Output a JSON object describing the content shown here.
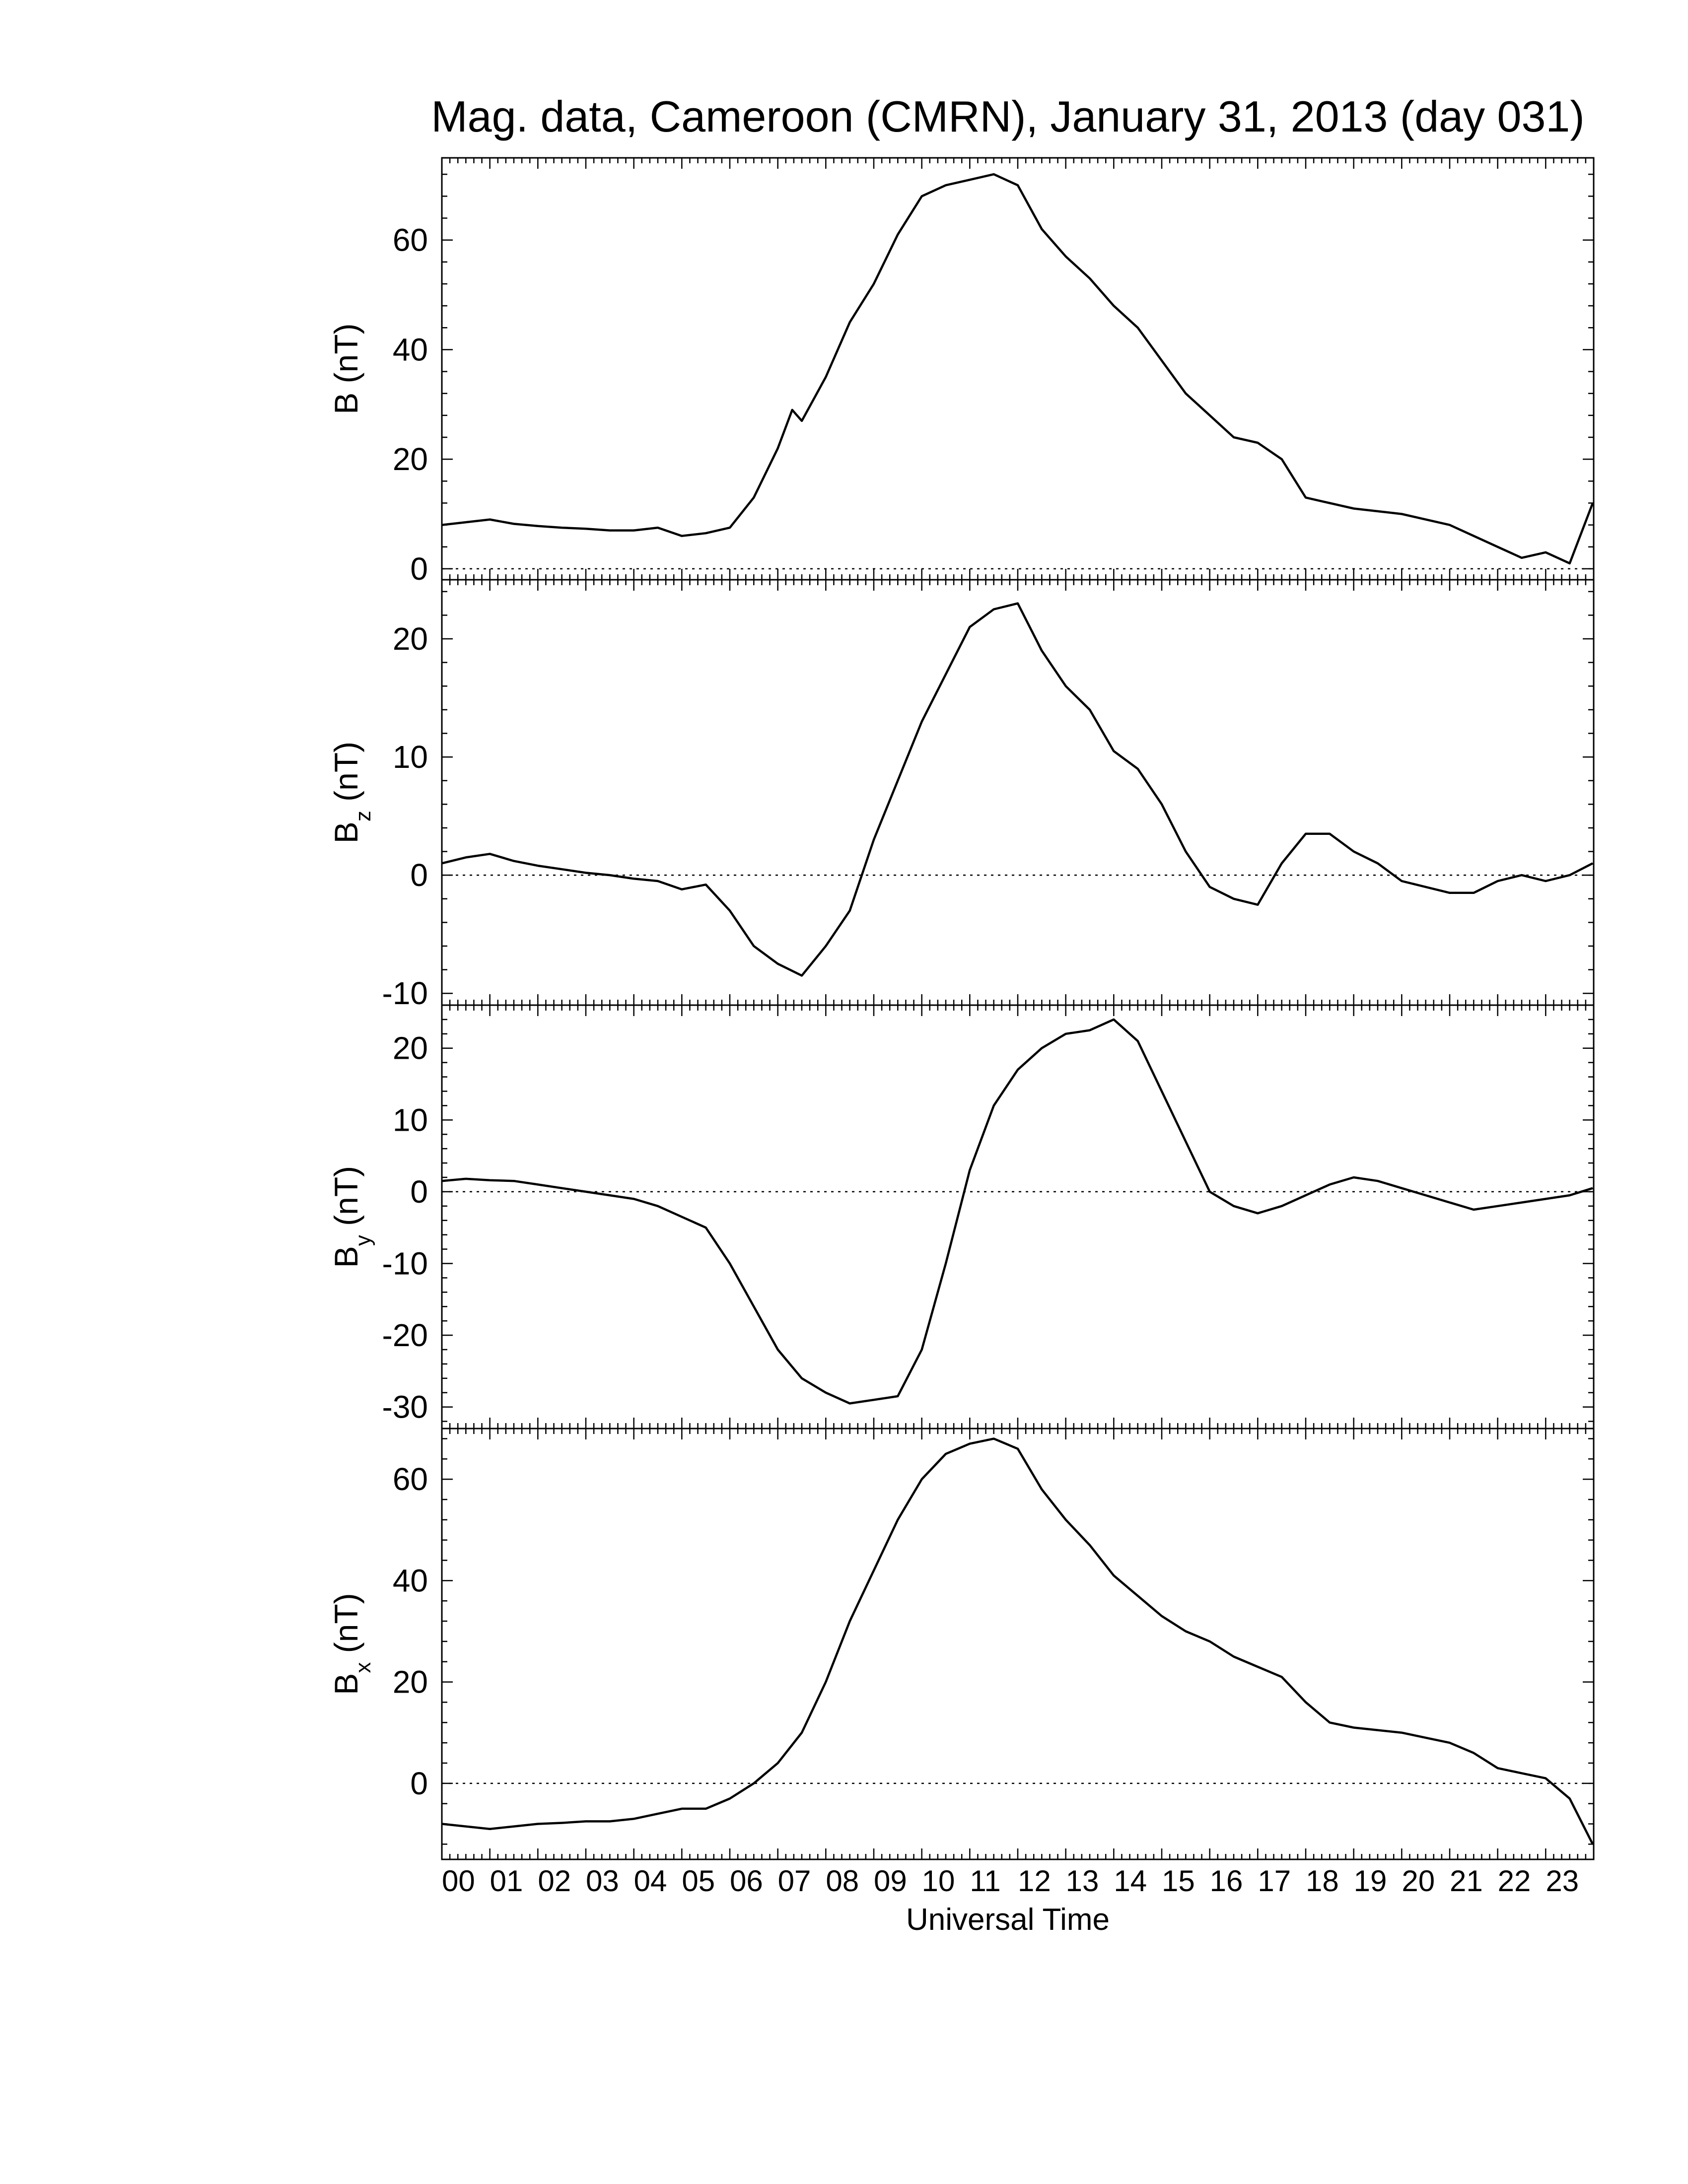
{
  "figure": {
    "title": "Mag. data, Cameroon (CMRN), January 31, 2013 (day 031)",
    "xlabel": "Universal Time"
  },
  "chart_data": [
    {
      "type": "line",
      "panel": "B",
      "ylabel": "B (nT)",
      "ylabel_base": "B",
      "ylabel_sub": "",
      "ylabel_unit": "(nT)",
      "xlim": [
        0,
        24
      ],
      "ylim": [
        -2,
        75
      ],
      "yticks": [
        0,
        20,
        40,
        60
      ],
      "zero_line": true,
      "x": [
        0,
        0.5,
        1,
        1.5,
        2,
        2.5,
        3,
        3.5,
        4,
        4.5,
        5,
        5.5,
        6,
        6.5,
        7,
        7.3,
        7.5,
        8,
        8.5,
        9,
        9.5,
        10,
        10.5,
        11,
        11.5,
        12,
        12.5,
        13,
        13.5,
        14,
        14.5,
        15,
        15.5,
        16,
        16.5,
        17,
        17.5,
        18,
        18.5,
        19,
        19.5,
        20,
        20.5,
        21,
        21.5,
        22,
        22.5,
        23,
        23.5,
        23.98
      ],
      "y": [
        8,
        8.5,
        9,
        8.2,
        7.8,
        7.5,
        7.3,
        7,
        7,
        7.5,
        6,
        6.5,
        7.5,
        13,
        22,
        29,
        27,
        35,
        45,
        52,
        61,
        68,
        70,
        71,
        72,
        70,
        62,
        57,
        53,
        48,
        44,
        38,
        32,
        28,
        24,
        23,
        20,
        13,
        12,
        11,
        10.5,
        10,
        9,
        8,
        6,
        4,
        2,
        3,
        1,
        12
      ]
    },
    {
      "type": "line",
      "panel": "Bz",
      "ylabel": "Bz (nT)",
      "ylabel_base": "B",
      "ylabel_sub": "z",
      "ylabel_unit": "(nT)",
      "xlim": [
        0,
        24
      ],
      "ylim": [
        -11,
        25
      ],
      "yticks": [
        -10,
        0,
        10,
        20
      ],
      "zero_line": true,
      "x": [
        0,
        0.5,
        1,
        1.5,
        2,
        2.5,
        3,
        3.5,
        4,
        4.5,
        5,
        5.5,
        6,
        6.5,
        7,
        7.5,
        8,
        8.5,
        9,
        9.5,
        10,
        10.5,
        11,
        11.5,
        12,
        12.5,
        13,
        13.5,
        14,
        14.5,
        15,
        15.5,
        16,
        16.5,
        17,
        17.5,
        18,
        18.5,
        19,
        19.5,
        20,
        20.5,
        21,
        21.5,
        22,
        22.5,
        23,
        23.5,
        23.98
      ],
      "y": [
        1,
        1.5,
        1.8,
        1.2,
        0.8,
        0.5,
        0.2,
        0,
        -0.3,
        -0.5,
        -1.2,
        -0.8,
        -3,
        -6,
        -7.5,
        -8.5,
        -6,
        -3,
        3,
        8,
        13,
        17,
        21,
        22.5,
        23,
        19,
        16,
        14,
        10.5,
        9,
        6,
        2,
        -1,
        -2,
        -2.5,
        1,
        3.5,
        3.5,
        2,
        1,
        -0.5,
        -1,
        -1.5,
        -1.5,
        -0.5,
        0,
        -0.5,
        0,
        1
      ]
    },
    {
      "type": "line",
      "panel": "By",
      "ylabel": "By (nT)",
      "ylabel_base": "B",
      "ylabel_sub": "y",
      "ylabel_unit": "(nT)",
      "xlim": [
        0,
        24
      ],
      "ylim": [
        -33,
        26
      ],
      "yticks": [
        -30,
        -20,
        -10,
        0,
        10,
        20
      ],
      "zero_line": true,
      "x": [
        0,
        0.5,
        1,
        1.5,
        2,
        2.5,
        3,
        3.5,
        4,
        4.5,
        5,
        5.5,
        6,
        6.5,
        7,
        7.5,
        8,
        8.5,
        9,
        9.5,
        10,
        10.5,
        11,
        11.5,
        12,
        12.5,
        13,
        13.5,
        14,
        14.5,
        15,
        15.5,
        16,
        16.5,
        17,
        17.5,
        18,
        18.5,
        19,
        19.5,
        20,
        20.5,
        21,
        21.5,
        22,
        22.5,
        23,
        23.5,
        23.98
      ],
      "y": [
        1.5,
        1.8,
        1.6,
        1.5,
        1,
        0.5,
        0,
        -0.5,
        -1,
        -2,
        -3.5,
        -5,
        -10,
        -16,
        -22,
        -26,
        -28,
        -29.5,
        -29,
        -28.5,
        -22,
        -10,
        3,
        12,
        17,
        20,
        22,
        22.5,
        24,
        21,
        14,
        7,
        0,
        -2,
        -3,
        -2,
        -0.5,
        1,
        2,
        1.5,
        0.5,
        -0.5,
        -1.5,
        -2.5,
        -2,
        -1.5,
        -1,
        -0.5,
        0.5
      ]
    },
    {
      "type": "line",
      "panel": "Bx",
      "ylabel": "Bx (nT)",
      "ylabel_base": "B",
      "ylabel_sub": "x",
      "ylabel_unit": "(nT)",
      "xlim": [
        0,
        24
      ],
      "ylim": [
        -15,
        70
      ],
      "yticks": [
        0,
        20,
        40,
        60
      ],
      "zero_line": true,
      "x": [
        0,
        0.5,
        1,
        1.5,
        2,
        2.5,
        3,
        3.5,
        4,
        4.5,
        5,
        5.5,
        6,
        6.5,
        7,
        7.5,
        8,
        8.5,
        9,
        9.5,
        10,
        10.5,
        11,
        11.5,
        12,
        12.5,
        13,
        13.5,
        14,
        14.5,
        15,
        15.5,
        16,
        16.5,
        17,
        17.5,
        18,
        18.5,
        19,
        19.5,
        20,
        20.5,
        21,
        21.5,
        22,
        22.5,
        23,
        23.5,
        23.98
      ],
      "y": [
        -8,
        -8.5,
        -9,
        -8.5,
        -8,
        -7.8,
        -7.5,
        -7.5,
        -7,
        -6,
        -5,
        -5,
        -3,
        0,
        4,
        10,
        20,
        32,
        42,
        52,
        60,
        65,
        67,
        68,
        66,
        58,
        52,
        47,
        41,
        37,
        33,
        30,
        28,
        25,
        23,
        21,
        16,
        12,
        11,
        10.5,
        10,
        9,
        8,
        6,
        3,
        2,
        1,
        -3,
        -12
      ]
    }
  ],
  "xaxis": {
    "tick_labels": [
      "00",
      "01",
      "02",
      "03",
      "04",
      "05",
      "06",
      "07",
      "08",
      "09",
      "10",
      "11",
      "12",
      "13",
      "14",
      "15",
      "16",
      "17",
      "18",
      "19",
      "20",
      "21",
      "22",
      "23"
    ]
  }
}
